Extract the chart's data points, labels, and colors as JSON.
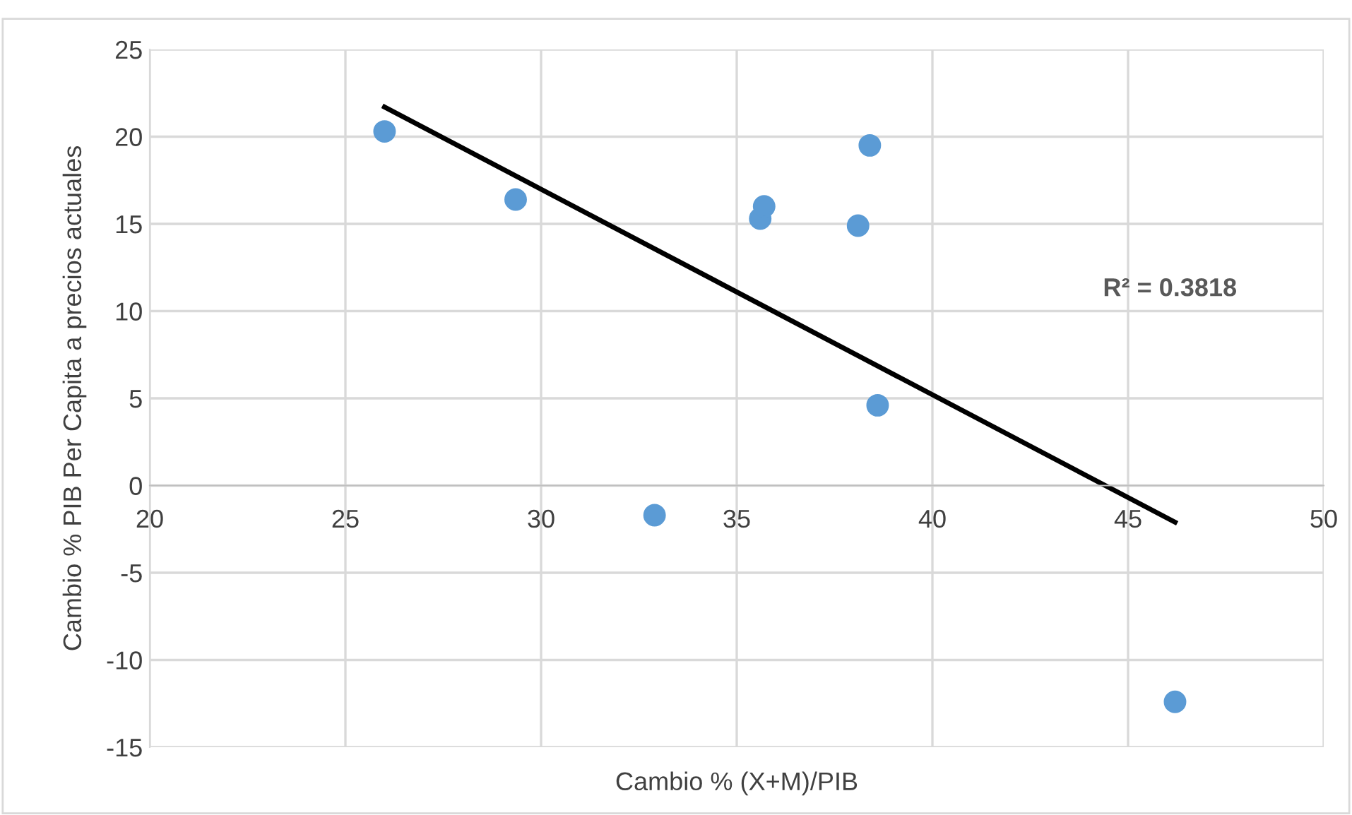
{
  "chart_data": {
    "type": "scatter",
    "xlabel": "Cambio % (X+M)/PIB",
    "ylabel": "Cambio % PIB Per Capita a precios actuales",
    "series": [
      {
        "color": "#5b9bd5",
        "marker": "circle",
        "x": [
          26.0,
          29.35,
          32.9,
          35.6,
          35.7,
          38.1,
          38.4,
          38.6,
          46.2
        ],
        "values": [
          20.3,
          16.4,
          -1.7,
          15.3,
          16.0,
          14.9,
          19.5,
          4.6,
          -12.4
        ]
      },
      {
        "type": "line",
        "color": "#000000",
        "marker": "none",
        "line_style": "solid",
        "x": [
          26.0,
          46.2
        ],
        "values": [
          21.7,
          -2.1
        ]
      }
    ],
    "annotations": [
      "R² = 0.3818"
    ],
    "xlim": [
      20,
      50
    ],
    "xticks": [
      20,
      25,
      30,
      35,
      40,
      45,
      50
    ],
    "ylim": [
      -15,
      25
    ],
    "yticks": [
      -15,
      -10,
      -5,
      0,
      5,
      10,
      15,
      20,
      25
    ],
    "grid": true,
    "legend": false
  }
}
